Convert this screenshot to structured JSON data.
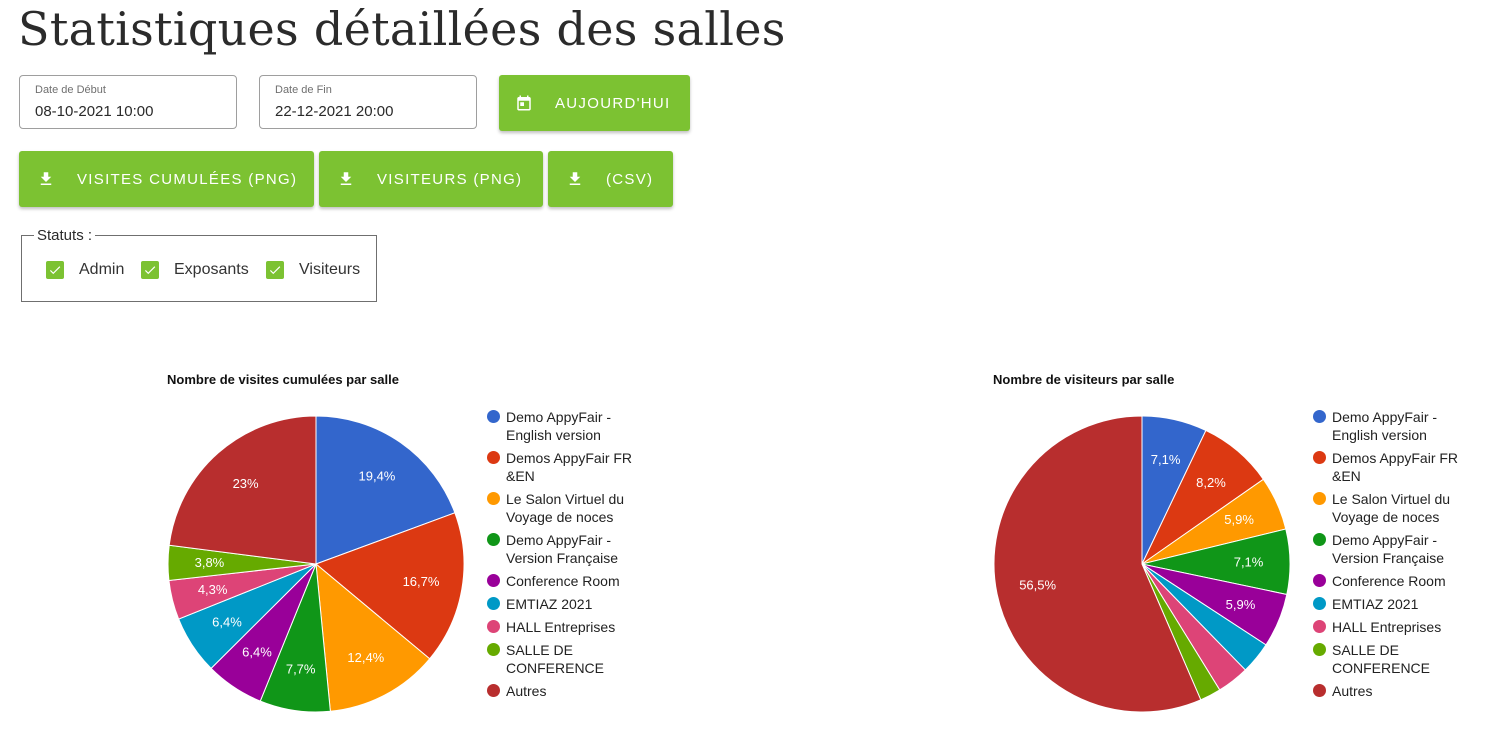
{
  "header": {
    "title": "Statistiques détaillées des salles"
  },
  "filters": {
    "start": {
      "label": "Date de Début",
      "value": "08-10-2021 10:00"
    },
    "end": {
      "label": "Date de Fin",
      "value": "22-12-2021 20:00"
    },
    "today_label": "AUJOURD'HUI"
  },
  "exports": {
    "visits_png": "VISITES CUMULÉES (PNG)",
    "visitors_png": "VISITEURS (PNG)",
    "csv": "(CSV)"
  },
  "statuts": {
    "legend": "Statuts :",
    "options": [
      {
        "label": "Admin",
        "checked": true
      },
      {
        "label": "Exposants",
        "checked": true
      },
      {
        "label": "Visiteurs",
        "checked": true
      }
    ]
  },
  "colors": {
    "accent": "#7cc232",
    "series": [
      "#3366cc",
      "#dc3912",
      "#ff9900",
      "#109618",
      "#990099",
      "#0099c6",
      "#dd4477",
      "#66aa00",
      "#b82e2e"
    ]
  },
  "icons": {
    "today": "calendar-icon",
    "download": "download-icon",
    "check": "check-icon"
  },
  "chart_data": [
    {
      "type": "pie",
      "title": "Nombre de visites cumulées par salle",
      "legend_position": "right",
      "categories": [
        "Demo AppyFair - English version",
        "Demos AppyFair FR &EN",
        "Le Salon Virtuel du Voyage de noces",
        "Demo AppyFair - Version Française",
        "Conference Room",
        "EMTIAZ 2021",
        "HALL Entreprises",
        "SALLE DE CONFERENCE",
        "Autres"
      ],
      "values": [
        19.4,
        16.7,
        12.4,
        7.7,
        6.4,
        6.4,
        4.3,
        3.8,
        23
      ],
      "labels": [
        "19,4%",
        "16,7%",
        "12,4%",
        "7,7%",
        "6,4%",
        "6,4%",
        "4,3%",
        "3,8%",
        "23%"
      ]
    },
    {
      "type": "pie",
      "title": "Nombre de visiteurs par salle",
      "legend_position": "right",
      "categories": [
        "Demo AppyFair - English version",
        "Demos AppyFair FR &EN",
        "Le Salon Virtuel du Voyage de noces",
        "Demo AppyFair - Version Française",
        "Conference Room",
        "EMTIAZ 2021",
        "HALL Entreprises",
        "SALLE DE CONFERENCE",
        "Autres"
      ],
      "values": [
        7.1,
        8.2,
        5.9,
        7.1,
        5.9,
        3.5,
        3.5,
        2.3,
        56.5
      ],
      "labels": [
        "7,1%",
        "8,2%",
        "5,9%",
        "7,1%",
        "5,9%",
        "",
        "",
        "",
        "56,5%"
      ]
    }
  ]
}
